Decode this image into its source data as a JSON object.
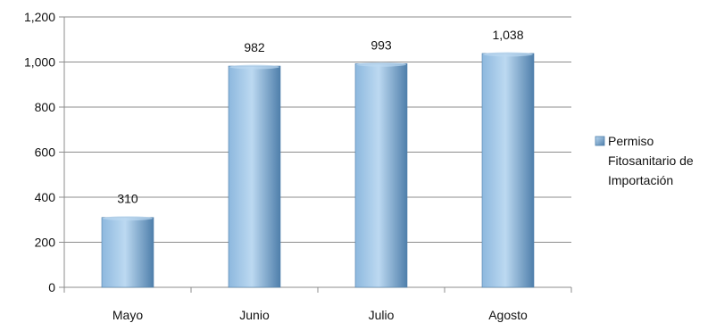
{
  "chart_data": {
    "type": "bar",
    "categories": [
      "Mayo",
      "Junio",
      "Julio",
      "Agosto"
    ],
    "series": [
      {
        "name": "Permiso Fitosanitario de Importación",
        "values": [
          310,
          982,
          993,
          1038
        ]
      }
    ],
    "data_labels": [
      "310",
      "982",
      "993",
      "1,038"
    ],
    "y_tick_labels": [
      "0",
      "200",
      "400",
      "600",
      "800",
      "1,000",
      "1,200"
    ],
    "ylim": [
      0,
      1200
    ],
    "grid": true,
    "legend": {
      "position": "right",
      "lines": [
        "Permiso",
        "Fitosanitario de",
        "Importación"
      ]
    },
    "title": "",
    "xlabel": "",
    "ylabel": "",
    "colors": {
      "bar_light": "#bcd9f1",
      "bar_mid": "#8db8de",
      "bar_dark": "#4f7fab",
      "gridline": "#8c8c8c",
      "axis": "#8c8c8c"
    }
  }
}
